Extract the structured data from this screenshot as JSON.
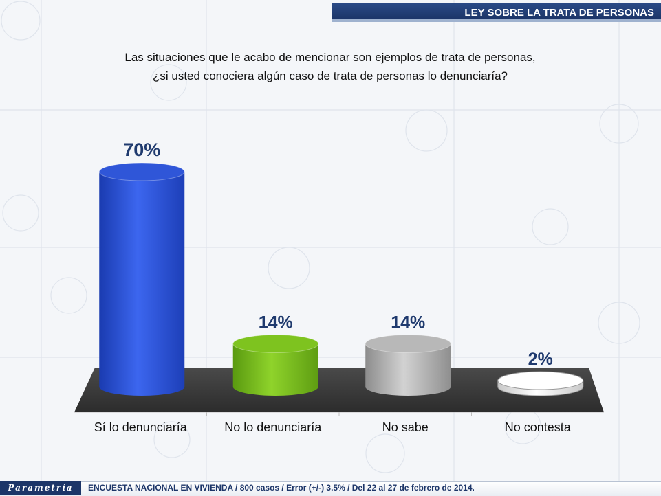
{
  "header": {
    "title": "LEY SOBRE LA TRATA DE PERSONAS"
  },
  "question": {
    "line1": "Las situaciones que le acabo de mencionar son ejemplos de trata de personas,",
    "line2": "¿si usted conociera algún caso de trata de personas lo denunciaría?"
  },
  "chart_data": {
    "type": "bar",
    "title": "",
    "xlabel": "",
    "ylabel": "",
    "categories": [
      "Sí lo denunciaría",
      "No lo denunciaría",
      "No sabe",
      "No contesta"
    ],
    "values": [
      70,
      14,
      14,
      2
    ],
    "data_labels": [
      "70%",
      "14%",
      "14%",
      "2%"
    ],
    "ylim": [
      0,
      70
    ],
    "colors": [
      "#2f56d8",
      "#7ec31f",
      "#b8b8b8",
      "#ffffff"
    ],
    "grid": false,
    "legend": "none"
  },
  "footer": {
    "logo": "Parametría",
    "note": "ENCUESTA NACIONAL EN VIVIENDA / 800 casos / Error (+/-)  3.5% / Del 22 al 27 de febrero de 2014."
  }
}
